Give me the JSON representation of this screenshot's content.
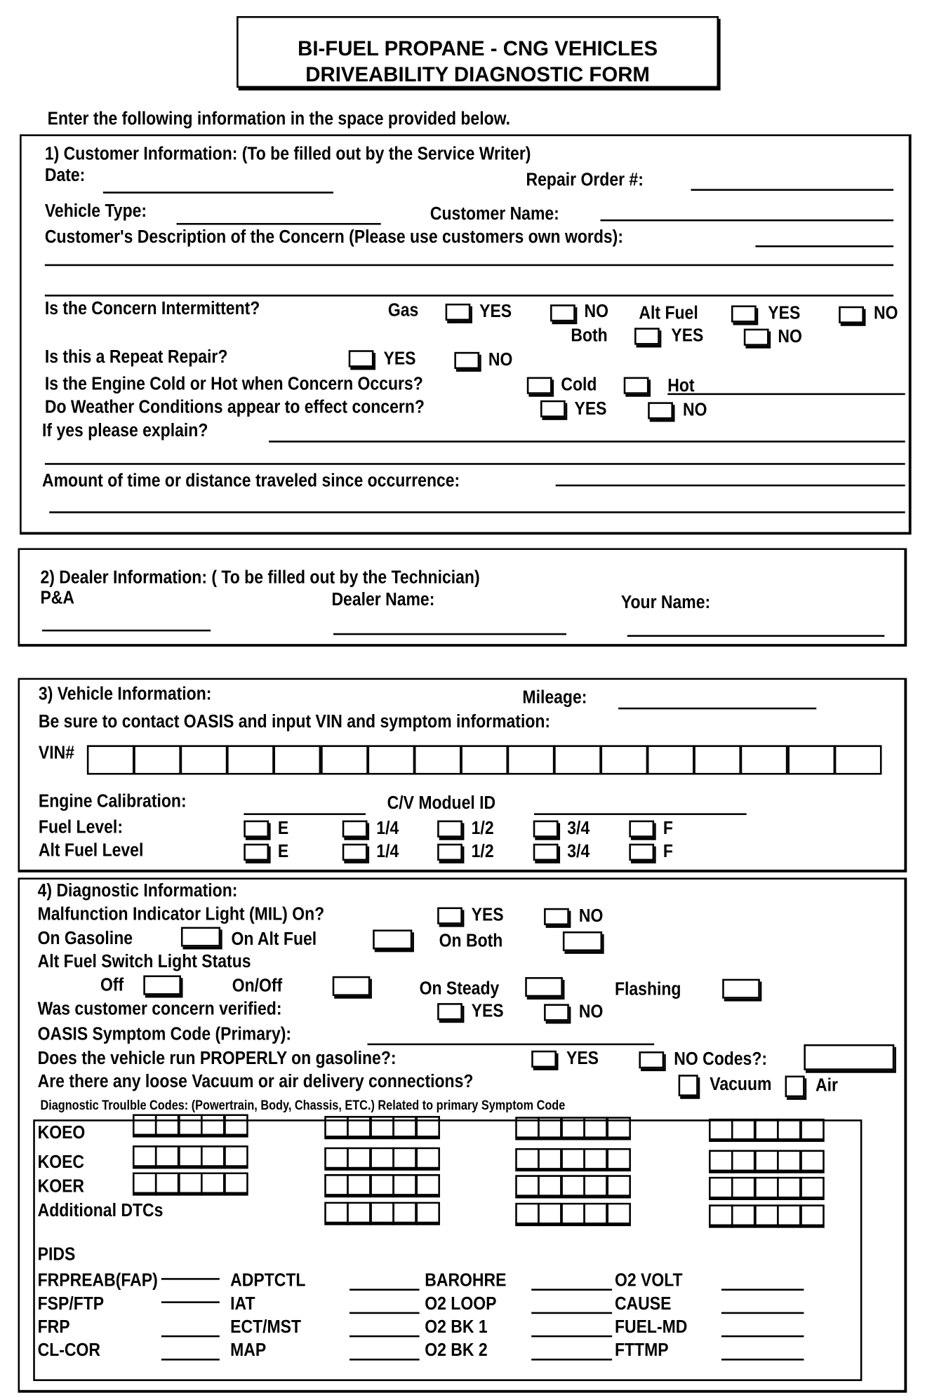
{
  "title": {
    "line1": "BI-FUEL PROPANE - CNG VEHICLES",
    "line2": "DRIVEABILITY DIAGNOSTIC FORM"
  },
  "instruction": "Enter the following information in the space provided below.",
  "options": {
    "yes": "YES",
    "no": "NO"
  },
  "customer": {
    "heading": "1) Customer Information:  (To be filled out by the Service Writer)",
    "date": "Date:",
    "repair_order": "Repair Order #:",
    "vehicle_type": "Vehicle Type:",
    "customer_name": "Customer Name:",
    "description": "Customer's Description of the Concern (Please use customers own words):",
    "intermittent": "Is the Concern Intermittent?",
    "gas": "Gas",
    "alt_fuel": "Alt Fuel",
    "both": "Both",
    "repeat": "Is this a Repeat Repair?",
    "cold_hot": "Is the Engine Cold or Hot when Concern Occurs?",
    "cold": "Cold",
    "hot": "Hot",
    "weather": "Do Weather Conditions appear to effect concern?",
    "explain": "If yes please explain?",
    "amount": "Amount of time or distance traveled since occurrence:"
  },
  "dealer": {
    "heading": "2) Dealer Information: ( To be filled out by the Technician)",
    "pa": "P&A",
    "dealer_name": "Dealer Name:",
    "your_name": "Your Name:"
  },
  "vehicle": {
    "heading": "3) Vehicle Information:",
    "mileage": "Mileage:",
    "oasis_note": "Be sure to contact OASIS and input VIN and symptom information:",
    "vin": "VIN#",
    "engine_cal": "Engine Calibration:",
    "module_id": "C/V Moduel ID",
    "fuel_level": "Fuel Level:",
    "alt_fuel_level": "Alt Fuel Level",
    "levels": [
      "E",
      "1/4",
      "1/2",
      "3/4",
      "F"
    ]
  },
  "diagnostic": {
    "heading": "4) Diagnostic Information:",
    "mil": "Malfunction Indicator Light (MIL) On?",
    "on_gas": "On Gasoline",
    "on_alt": "On Alt Fuel",
    "on_both": "On Both",
    "switch_status": "Alt Fuel Switch Light Status",
    "off": "Off",
    "onoff": "On/Off",
    "steady": "On Steady",
    "flashing": "Flashing",
    "verified": "Was customer concern verified:",
    "oasis_code": "OASIS Symptom Code (Primary):",
    "runs_properly": "Does the vehicle run PROPERLY on gasoline?:",
    "no_codes": "NO Codes?:",
    "loose": "Are there any loose Vacuum or air delivery connections?",
    "vacuum": "Vacuum",
    "air": "Air",
    "dtc_note": "Diagnostic Troulble Codes: (Powertrain, Body, Chassis, ETC.) Related to primary Symptom Code",
    "dtc_rows": [
      "KOEO",
      "KOEC",
      "KOER",
      "Additional DTCs"
    ],
    "pids_heading": "PIDS",
    "pids": [
      [
        "FRPREAB(FAP)",
        "ADPTCTL",
        "BAROHRE",
        "O2 VOLT"
      ],
      [
        "FSP/FTP",
        "IAT",
        "O2 LOOP",
        "CAUSE"
      ],
      [
        "FRP",
        "ECT/MST",
        "O2 BK 1",
        "FUEL-MD"
      ],
      [
        "CL-COR",
        "MAP",
        "O2 BK 2",
        "FTTMP"
      ]
    ]
  }
}
